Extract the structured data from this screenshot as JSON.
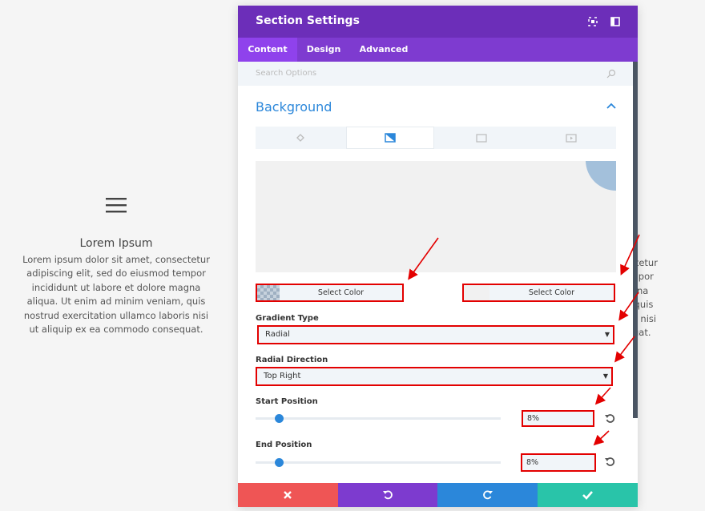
{
  "page": {
    "heading": "Lorem Ipsum",
    "paragraph": "Lorem ipsum dolor sit amet, consectetur adipiscing elit, sed do eiusmod tempor incididunt ut labore et dolore magna aliqua. Ut enim ad minim veniam, quis nostrud exercitation ullamco laboris nisi ut aliquip ex ea commodo consequat."
  },
  "modal": {
    "title": "Section Settings",
    "tabs": [
      "Content",
      "Design",
      "Advanced"
    ],
    "search_placeholder": "Search Options",
    "section": "Background",
    "color_pickers": [
      "Select Color",
      "Select Color"
    ],
    "fields": [
      {
        "label": "Gradient Type",
        "value": "Radial"
      },
      {
        "label": "Radial Direction",
        "value": "Top Right"
      },
      {
        "label": "Start Position",
        "value": "8%"
      },
      {
        "label": "End Position",
        "value": "8%"
      }
    ]
  }
}
